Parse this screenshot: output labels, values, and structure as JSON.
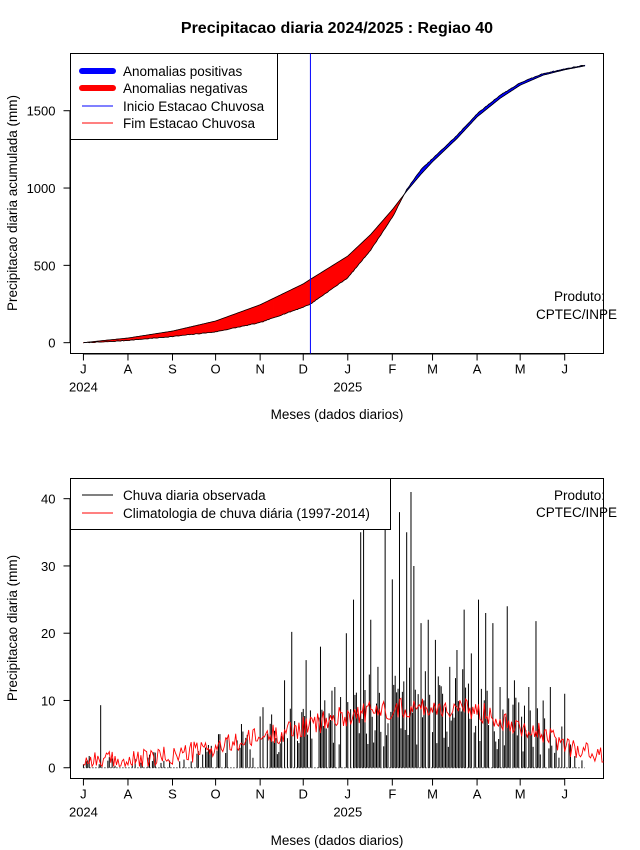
{
  "colors": {
    "positive": "#0000ff",
    "negative": "#ff0000",
    "onset": "#0000ff",
    "end": "#ff0000",
    "observed": "#000000",
    "climatology": "#ff0000"
  },
  "months": {
    "labels": [
      "J",
      "A",
      "S",
      "O",
      "N",
      "D",
      "J",
      "F",
      "M",
      "A",
      "M",
      "J"
    ],
    "day_index": [
      0,
      31,
      62,
      92,
      123,
      153,
      184,
      215,
      243,
      274,
      304,
      335
    ],
    "year_labels": [
      "2024",
      "2025"
    ]
  },
  "chart_data": [
    {
      "type": "area",
      "title": "Precipitacao diaria 2024/2025 : Regiao 40",
      "xlabel": "Meses (dados diarios)",
      "ylabel": "Precipitacao diaria acumulada (mm)",
      "ylim": [
        -70,
        1870
      ],
      "xlim": [
        -9,
        362
      ],
      "yticks": [
        0,
        500,
        1000,
        1500
      ],
      "grid": false,
      "legend_position": "top-left",
      "legend": [
        "Anomalias positivas",
        "Anomalias negativas",
        "Inicio Estacao Chuvosa",
        "Fim Estacao Chuvosa"
      ],
      "watermark": [
        "Produto:",
        "CPTEC/INPE"
      ],
      "rainy_season_start_day": 158,
      "observed_cumulative_anchors": [
        [
          0,
          0
        ],
        [
          15,
          5
        ],
        [
          31,
          15
        ],
        [
          62,
          40
        ],
        [
          92,
          70
        ],
        [
          123,
          130
        ],
        [
          153,
          230
        ],
        [
          158,
          250
        ],
        [
          184,
          420
        ],
        [
          200,
          600
        ],
        [
          215,
          810
        ],
        [
          225,
          990
        ],
        [
          235,
          1120
        ],
        [
          243,
          1190
        ],
        [
          260,
          1340
        ],
        [
          274,
          1480
        ],
        [
          290,
          1600
        ],
        [
          304,
          1680
        ],
        [
          320,
          1740
        ],
        [
          335,
          1770
        ],
        [
          349,
          1795
        ]
      ],
      "climatology_cumulative_anchors": [
        [
          0,
          0
        ],
        [
          15,
          15
        ],
        [
          31,
          30
        ],
        [
          62,
          75
        ],
        [
          92,
          140
        ],
        [
          123,
          245
        ],
        [
          153,
          380
        ],
        [
          158,
          410
        ],
        [
          184,
          560
        ],
        [
          200,
          700
        ],
        [
          215,
          860
        ],
        [
          225,
          980
        ],
        [
          235,
          1090
        ],
        [
          243,
          1170
        ],
        [
          260,
          1320
        ],
        [
          274,
          1460
        ],
        [
          290,
          1580
        ],
        [
          304,
          1665
        ],
        [
          320,
          1730
        ],
        [
          335,
          1765
        ],
        [
          349,
          1790
        ]
      ]
    },
    {
      "type": "bar",
      "xlabel": "Meses (dados diarios)",
      "ylabel": "Precipitacao diaria (mm)",
      "ylim": [
        -1.6,
        43
      ],
      "xlim": [
        -9,
        362
      ],
      "yticks": [
        0,
        10,
        20,
        30,
        40
      ],
      "grid": false,
      "legend_position": "top-left",
      "legend": [
        "Chuva diaria observada",
        "Climatologia de chuva diária (1997-2014)"
      ],
      "watermark": [
        "Produto:",
        "CPTEC/INPE"
      ],
      "observed_daily_peaks": [
        [
          12,
          9.3
        ],
        [
          45,
          1.5
        ],
        [
          70,
          1.2
        ],
        [
          85,
          3
        ],
        [
          100,
          4.5
        ],
        [
          110,
          6.5
        ],
        [
          125,
          9
        ],
        [
          140,
          13
        ],
        [
          145,
          20.2
        ],
        [
          155,
          16
        ],
        [
          165,
          18
        ],
        [
          175,
          12
        ],
        [
          183,
          20
        ],
        [
          188,
          25
        ],
        [
          193,
          35
        ],
        [
          195,
          36
        ],
        [
          200,
          22
        ],
        [
          205,
          15
        ],
        [
          210,
          38
        ],
        [
          215,
          28
        ],
        [
          220,
          38
        ],
        [
          225,
          35
        ],
        [
          228,
          41
        ],
        [
          230,
          30
        ],
        [
          235,
          21.5
        ],
        [
          240,
          22
        ],
        [
          245,
          19
        ],
        [
          250,
          11
        ],
        [
          255,
          15
        ],
        [
          260,
          17.5
        ],
        [
          265,
          23.5
        ],
        [
          270,
          17
        ],
        [
          275,
          25
        ],
        [
          280,
          23
        ],
        [
          285,
          21.5
        ],
        [
          290,
          12
        ],
        [
          295,
          24
        ],
        [
          300,
          13
        ],
        [
          310,
          12
        ],
        [
          315,
          21.8
        ],
        [
          320,
          10
        ],
        [
          325,
          12
        ],
        [
          335,
          11
        ]
      ],
      "climatology_anchors": [
        [
          0,
          1.2
        ],
        [
          31,
          0.8
        ],
        [
          62,
          1.8
        ],
        [
          92,
          3
        ],
        [
          123,
          4.5
        ],
        [
          153,
          6
        ],
        [
          184,
          7.8
        ],
        [
          215,
          8.8
        ],
        [
          243,
          9
        ],
        [
          274,
          8.5
        ],
        [
          304,
          6.3
        ],
        [
          335,
          3.5
        ],
        [
          362,
          1.5
        ]
      ]
    }
  ]
}
